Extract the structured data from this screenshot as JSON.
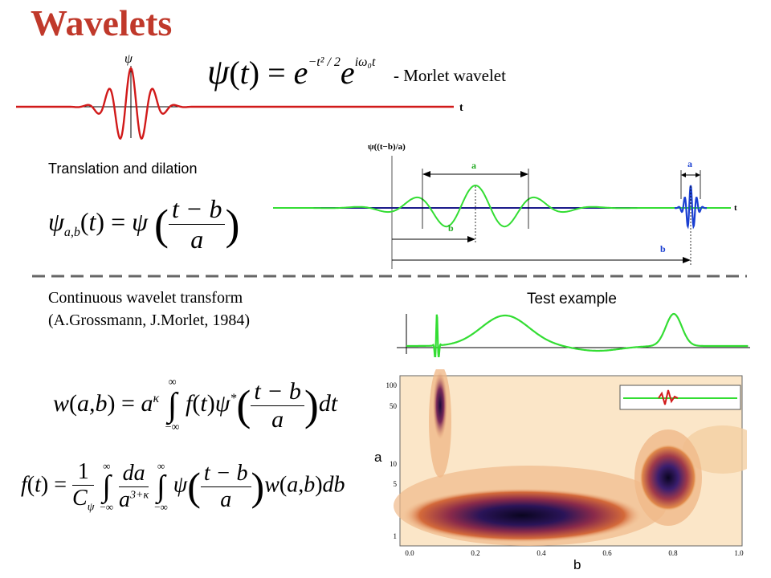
{
  "slide": {
    "title": "Wavelets",
    "morlet_formula": "ψ(t) = e^{−t²/2} e^{iω₀t}",
    "morlet_label": "- Morlet wavelet",
    "morlet_axis_y": "ψ",
    "morlet_axis_x": "t",
    "translation_label": "Translation and dilation",
    "dilation_formula": "ψ_{a,b}(t) = ψ((t−b)/a)",
    "dilation_plot": {
      "y_label": "ψ((t−b)/a)",
      "x_label": "t",
      "a_label_1": "a",
      "a_label_2": "a",
      "b_label_1": "b",
      "b_label_2": "b"
    },
    "cwt_line1": "Continuous wavelet transform",
    "cwt_line2": "(A.Grossmann, J.Morlet, 1984)",
    "cwt_formula": "w(a,b) = a^κ ∫_{−∞}^{∞} f(t) ψ*((t−b)/a) dt",
    "inverse_formula": "f(t) = 1/C_ψ ∫_{−∞}^{∞} da/a^{3+κ} ∫_{−∞}^{∞} ψ((t−b)/a) w(a,b) db",
    "test_example_label": "Test example",
    "scalogram": {
      "y_axis_label": "a",
      "x_axis_label": "b",
      "y_ticks": [
        "100",
        "50",
        "10",
        "5",
        "1"
      ],
      "x_ticks": [
        "0.0",
        "0.2",
        "0.4",
        "0.6",
        "0.8",
        "1.0"
      ]
    },
    "colors": {
      "title": "#c0392b",
      "morlet_curve": "#d11a1a",
      "wavelet_green": "#33dd33",
      "wavelet_blue": "#1a3fd1",
      "divider": "#666666"
    }
  }
}
